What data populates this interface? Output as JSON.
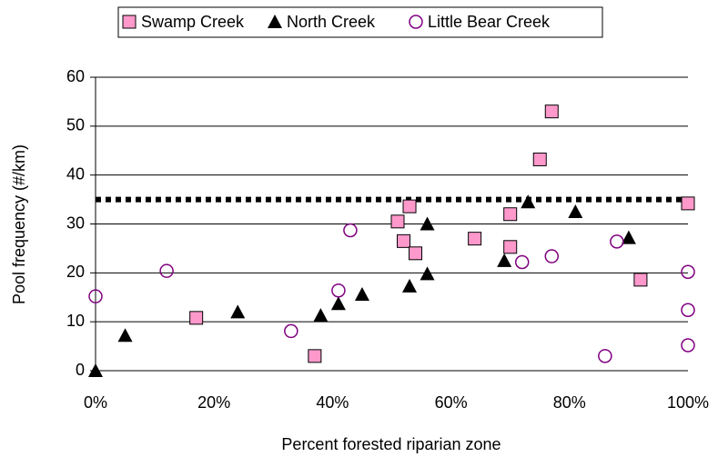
{
  "chart_data": {
    "type": "scatter",
    "xlabel": "Percent forested riparian zone",
    "ylabel": "Pool frequency (#/km)",
    "xlim": [
      0,
      100
    ],
    "ylim": [
      0,
      60
    ],
    "xticks": [
      {
        "value": 0,
        "label": "0%"
      },
      {
        "value": 20,
        "label": "20%"
      },
      {
        "value": 40,
        "label": "40%"
      },
      {
        "value": 60,
        "label": "60%"
      },
      {
        "value": 80,
        "label": "80%"
      },
      {
        "value": 100,
        "label": "100%"
      }
    ],
    "yticks": [
      0,
      10,
      20,
      30,
      40,
      50,
      60
    ],
    "grid": true,
    "legend": "top",
    "reference_line": 35,
    "series": [
      {
        "name": "Swamp Creek",
        "color": "#ff99cc",
        "marker": "square",
        "x": [
          17,
          37,
          51,
          53,
          52,
          54,
          64,
          70,
          70,
          75,
          77,
          92,
          100
        ],
        "values": [
          10.8,
          3,
          30.5,
          33.6,
          26.5,
          24,
          27,
          32,
          25.3,
          43.2,
          53,
          18.6,
          34.2
        ]
      },
      {
        "name": "North Creek",
        "color": "#000000",
        "marker": "triangle",
        "x": [
          0,
          5,
          24,
          38,
          41,
          45,
          53,
          56,
          56,
          69,
          73,
          81,
          90
        ],
        "values": [
          0,
          7.2,
          12,
          11.3,
          13.7,
          15.6,
          17.3,
          19.8,
          30,
          22.5,
          34.5,
          32.5,
          27.2
        ]
      },
      {
        "name": "Little Bear Creek",
        "color": "#800080",
        "marker": "circle",
        "x": [
          0,
          12,
          33,
          41,
          43,
          72,
          77,
          86,
          88,
          100,
          100,
          100
        ],
        "values": [
          15.2,
          20.4,
          8.1,
          16.4,
          28.7,
          22.2,
          23.4,
          3,
          26.4,
          20.2,
          12.4,
          5.2
        ]
      }
    ]
  }
}
